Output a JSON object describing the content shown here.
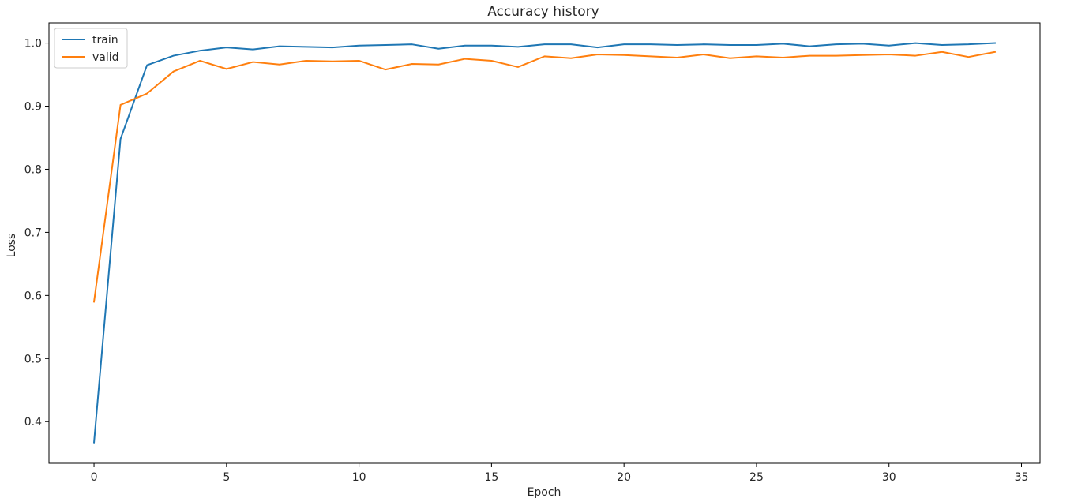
{
  "chart_data": {
    "type": "line",
    "title": "Accuracy history",
    "xlabel": "Epoch",
    "ylabel": "Loss",
    "xlim": [
      -1.7,
      35.7
    ],
    "ylim": [
      0.334,
      1.032
    ],
    "xticks": [
      0,
      5,
      10,
      15,
      20,
      25,
      30,
      35
    ],
    "yticks": [
      0.4,
      0.5,
      0.6,
      0.7,
      0.8,
      0.9,
      1.0
    ],
    "xtick_labels": [
      "0",
      "5",
      "10",
      "15",
      "20",
      "25",
      "30",
      "35"
    ],
    "ytick_labels": [
      "0.4",
      "0.5",
      "0.6",
      "0.7",
      "0.8",
      "0.9",
      "1.0"
    ],
    "grid": false,
    "legend": "top-left",
    "x": [
      0,
      1,
      2,
      3,
      4,
      5,
      6,
      7,
      8,
      9,
      10,
      11,
      12,
      13,
      14,
      15,
      16,
      17,
      18,
      19,
      20,
      21,
      22,
      23,
      24,
      25,
      26,
      27,
      28,
      29,
      30,
      31,
      32,
      33,
      34
    ],
    "series": [
      {
        "name": "train",
        "color": "#1f77b4",
        "values": [
          0.367,
          0.848,
          0.965,
          0.98,
          0.988,
          0.993,
          0.99,
          0.995,
          0.994,
          0.993,
          0.996,
          0.997,
          0.998,
          0.991,
          0.996,
          0.996,
          0.994,
          0.998,
          0.998,
          0.993,
          0.998,
          0.998,
          0.997,
          0.998,
          0.997,
          0.997,
          0.999,
          0.995,
          0.998,
          0.999,
          0.996,
          1.0,
          0.997,
          0.998,
          1.0
        ]
      },
      {
        "name": "valid",
        "color": "#ff7f0e",
        "values": [
          0.59,
          0.902,
          0.92,
          0.955,
          0.972,
          0.959,
          0.97,
          0.966,
          0.972,
          0.971,
          0.972,
          0.958,
          0.967,
          0.966,
          0.975,
          0.972,
          0.962,
          0.979,
          0.976,
          0.982,
          0.981,
          0.979,
          0.977,
          0.982,
          0.976,
          0.979,
          0.977,
          0.98,
          0.98,
          0.981,
          0.982,
          0.98,
          0.986,
          0.978,
          0.986
        ]
      }
    ]
  }
}
